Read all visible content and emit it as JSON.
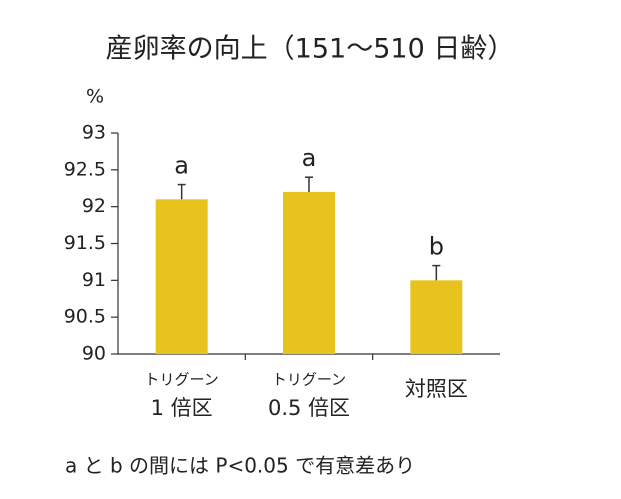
{
  "chart_data": {
    "type": "bar",
    "title": "産卵率の向上（151〜510 日齢）",
    "y_label": "%",
    "categories": [
      [
        "トリグーン",
        "1 倍区"
      ],
      [
        "トリグーン",
        "0.5 倍区"
      ],
      [
        "対照区"
      ]
    ],
    "values": [
      92.1,
      92.2,
      91.0
    ],
    "errors": [
      0.2,
      0.2,
      0.2
    ],
    "significance_labels": [
      "a",
      "a",
      "b"
    ],
    "color": "#e8c31e",
    "ylim": [
      90,
      93
    ],
    "yticks": [
      90,
      90.5,
      91,
      91.5,
      92,
      92.5,
      93
    ],
    "note": "a と b の間には P<0.05 で有意差あり"
  }
}
